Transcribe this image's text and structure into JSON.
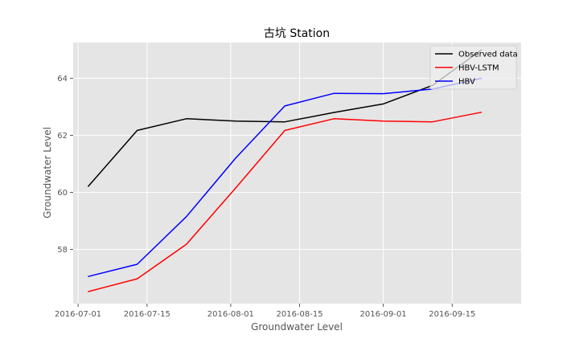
{
  "chart_data": {
    "type": "line",
    "title": "古坑 Station",
    "xlabel": "Groundwater Level",
    "ylabel": "Groundwater Level",
    "x": [
      "2016-07-03",
      "2016-07-13",
      "2016-07-23",
      "2016-08-02",
      "2016-08-12",
      "2016-08-22",
      "2016-09-01",
      "2016-09-11",
      "2016-09-21"
    ],
    "series": [
      {
        "name": "Observed data",
        "color": "#000000",
        "values": [
          60.2,
          62.17,
          62.58,
          62.5,
          62.47,
          62.8,
          63.1,
          63.75,
          65.0
        ]
      },
      {
        "name": "HBV-LSTM",
        "color": "#ff0000",
        "values": [
          56.52,
          56.97,
          58.18,
          60.15,
          62.17,
          62.58,
          62.5,
          62.47,
          62.81
        ]
      },
      {
        "name": "HBV",
        "color": "#0000ff",
        "values": [
          57.05,
          57.48,
          59.15,
          61.2,
          63.03,
          63.47,
          63.46,
          63.62,
          64.0
        ]
      }
    ],
    "xticks": [
      "2016-07-01",
      "2016-07-15",
      "2016-08-01",
      "2016-08-15",
      "2016-09-01",
      "2016-09-15"
    ],
    "yticks": [
      58,
      60,
      62,
      64
    ],
    "xlim": [
      "2016-06-30",
      "2016-09-29"
    ],
    "ylim": [
      56.1,
      65.25
    ],
    "grid": true,
    "legend_position": "top-right",
    "background_color": "#e5e5e5",
    "grid_color": "#ffffff"
  }
}
